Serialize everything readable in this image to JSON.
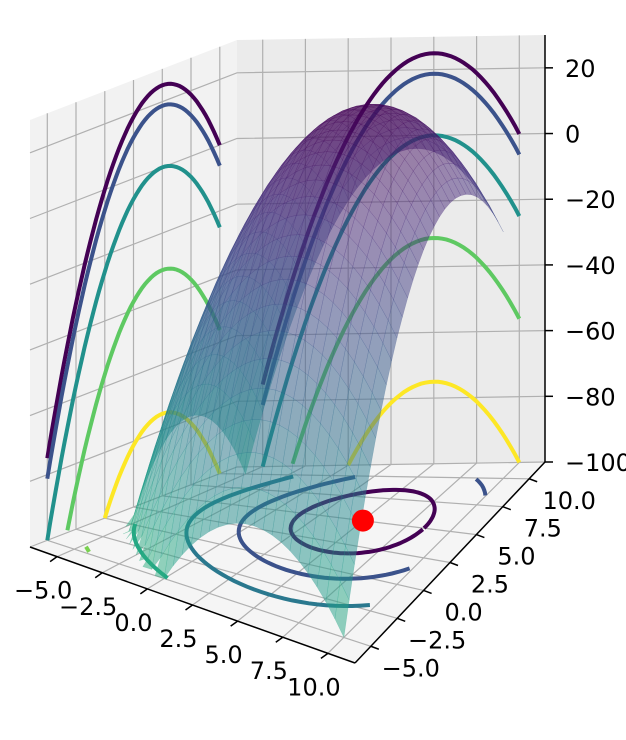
{
  "chart_data": {
    "type": "surface3d",
    "title": "",
    "xlabel": "",
    "ylabel": "",
    "zlabel": "",
    "x_ticks": [
      "−5.0",
      "−2.5",
      "0.0",
      "2.5",
      "5.0",
      "7.5",
      "10.0"
    ],
    "y_ticks": [
      "−5.0",
      "−2.5",
      "0.0",
      "2.5",
      "5.0",
      "7.5",
      "10.0"
    ],
    "z_ticks": [
      "−100",
      "−80",
      "−60",
      "−40",
      "−20",
      "0",
      "20"
    ],
    "xlim": [
      -6.5,
      11.5
    ],
    "ylim": [
      -6.5,
      11.5
    ],
    "zlim": [
      -100,
      30
    ],
    "grid": true,
    "surface": {
      "function": "z = 25 - (x - 5)^2 - (y - 5)^2",
      "x_range": [
        -5,
        10
      ],
      "y_range": [
        -5,
        10
      ],
      "colormap": "viridis",
      "alpha": 0.5
    },
    "contour_levels": [
      -100,
      -75,
      -50,
      -25,
      -5,
      15,
      22
    ],
    "contour_colors": [
      "#fde725",
      "#7ad151",
      "#22a884",
      "#2a788e",
      "#414487",
      "#440154",
      "#440154"
    ],
    "marker": {
      "x": 5,
      "y": 5,
      "z": -100,
      "color": "#ff0000"
    }
  }
}
